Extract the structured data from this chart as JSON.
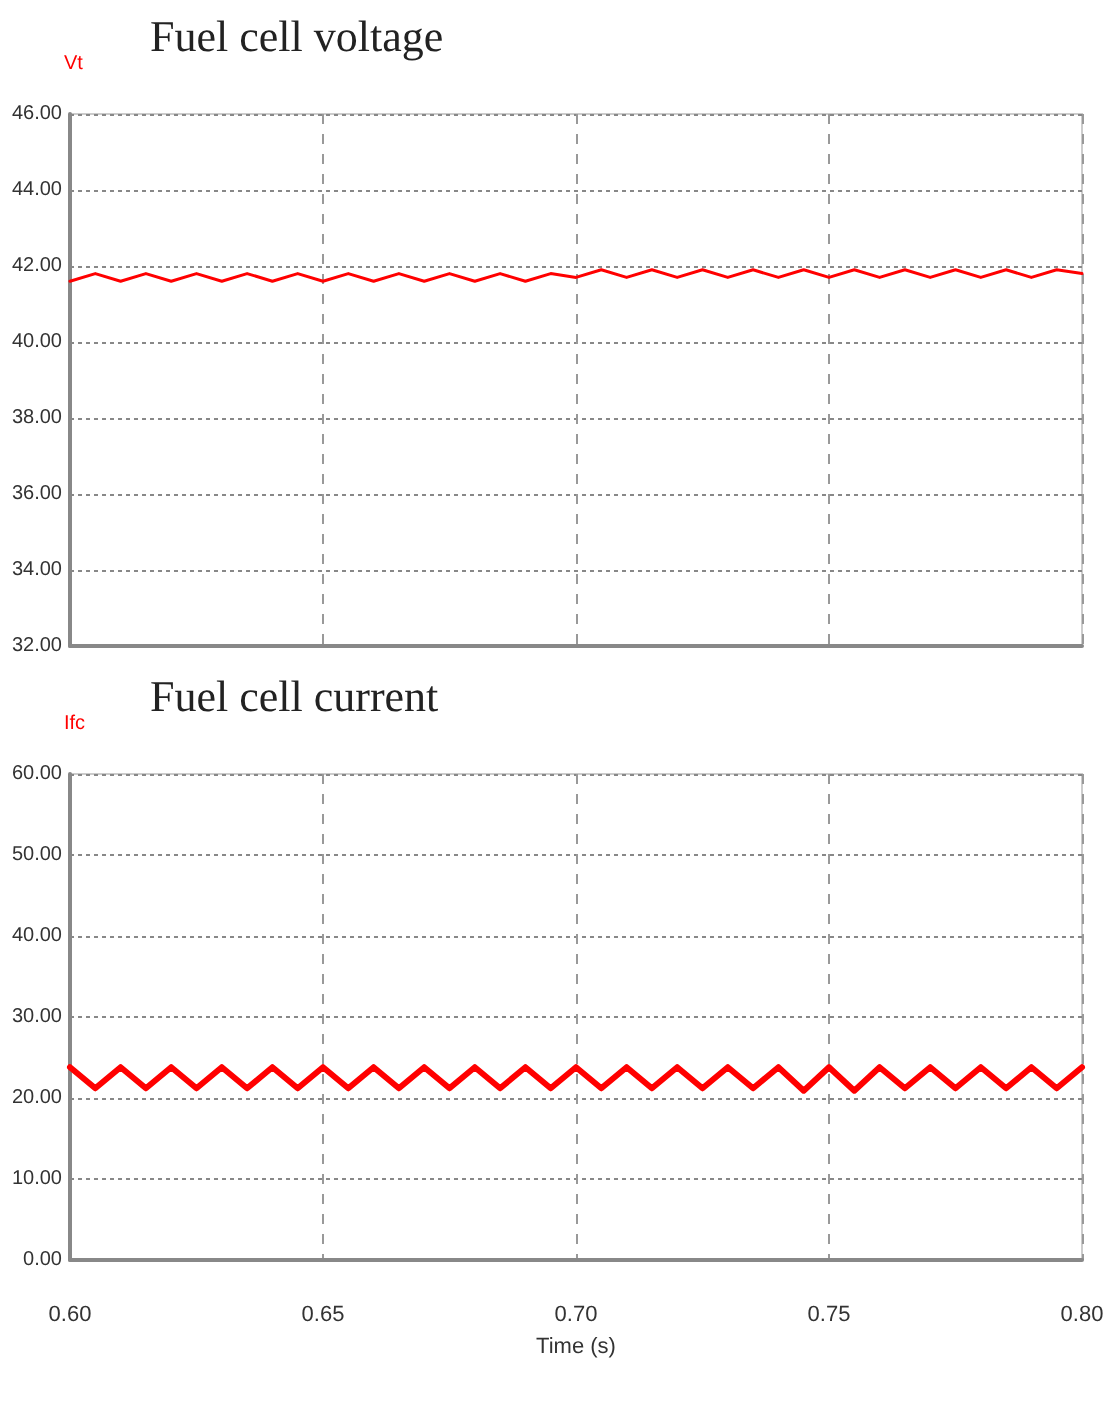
{
  "chart_data": [
    {
      "type": "line",
      "title": "Fuel cell voltage",
      "x": [
        0.6,
        0.605,
        0.61,
        0.615,
        0.62,
        0.625,
        0.63,
        0.635,
        0.64,
        0.645,
        0.65,
        0.655,
        0.66,
        0.665,
        0.67,
        0.675,
        0.68,
        0.685,
        0.69,
        0.695,
        0.7,
        0.705,
        0.71,
        0.715,
        0.72,
        0.725,
        0.73,
        0.735,
        0.74,
        0.745,
        0.75,
        0.755,
        0.76,
        0.765,
        0.77,
        0.775,
        0.78,
        0.785,
        0.79,
        0.795,
        0.8
      ],
      "series": [
        {
          "name": "Vt",
          "color": "#ff0000",
          "values": [
            41.6,
            41.8,
            41.6,
            41.8,
            41.6,
            41.8,
            41.6,
            41.8,
            41.6,
            41.8,
            41.6,
            41.8,
            41.6,
            41.8,
            41.6,
            41.8,
            41.6,
            41.8,
            41.6,
            41.8,
            41.7,
            41.9,
            41.7,
            41.9,
            41.7,
            41.9,
            41.7,
            41.9,
            41.7,
            41.9,
            41.7,
            41.9,
            41.7,
            41.9,
            41.7,
            41.9,
            41.7,
            41.9,
            41.7,
            41.9,
            41.8
          ]
        }
      ],
      "xlim": [
        0.6,
        0.8
      ],
      "xticks": [
        0.6,
        0.65,
        0.7,
        0.75,
        0.8
      ],
      "ylim": [
        32,
        46
      ],
      "yticks": [
        {
          "value": 32,
          "label": "32.00"
        },
        {
          "value": 34,
          "label": "34.00"
        },
        {
          "value": 36,
          "label": "36.00"
        },
        {
          "value": 38,
          "label": "38.00"
        },
        {
          "value": 40,
          "label": "40.00"
        },
        {
          "value": 42,
          "label": "42.00"
        },
        {
          "value": 44,
          "label": "44.00"
        },
        {
          "value": 46,
          "label": "46.00"
        }
      ],
      "tick_labels": "y",
      "grid": true,
      "marker": "none",
      "line_style": "solid"
    },
    {
      "type": "line",
      "title": "Fuel cell current",
      "xlabel": "Time (s)",
      "x": [
        0.6,
        0.605,
        0.61,
        0.615,
        0.62,
        0.625,
        0.63,
        0.635,
        0.64,
        0.645,
        0.65,
        0.655,
        0.66,
        0.665,
        0.67,
        0.675,
        0.68,
        0.685,
        0.69,
        0.695,
        0.7,
        0.705,
        0.71,
        0.715,
        0.72,
        0.725,
        0.73,
        0.735,
        0.74,
        0.745,
        0.75,
        0.755,
        0.76,
        0.765,
        0.77,
        0.775,
        0.78,
        0.785,
        0.79,
        0.795,
        0.8
      ],
      "series": [
        {
          "name": "Ifc",
          "color": "#ff0000",
          "values": [
            23.8,
            21.2,
            23.8,
            21.2,
            23.8,
            21.2,
            23.8,
            21.2,
            23.8,
            21.2,
            23.8,
            21.2,
            23.8,
            21.2,
            23.8,
            21.2,
            23.8,
            21.2,
            23.8,
            21.2,
            23.8,
            21.2,
            23.8,
            21.2,
            23.8,
            21.2,
            23.8,
            21.2,
            23.8,
            20.9,
            23.8,
            20.9,
            23.8,
            21.2,
            23.8,
            21.2,
            23.8,
            21.2,
            23.8,
            21.2,
            23.8
          ]
        }
      ],
      "xlim": [
        0.6,
        0.8
      ],
      "xticks": [
        {
          "value": 0.6,
          "label": "0.60"
        },
        {
          "value": 0.65,
          "label": "0.65"
        },
        {
          "value": 0.7,
          "label": "0.70"
        },
        {
          "value": 0.75,
          "label": "0.75"
        },
        {
          "value": 0.8,
          "label": "0.80"
        }
      ],
      "ylim": [
        0,
        60
      ],
      "yticks": [
        {
          "value": 0,
          "label": "0.00"
        },
        {
          "value": 10,
          "label": "10.00"
        },
        {
          "value": 20,
          "label": "20.00"
        },
        {
          "value": 30,
          "label": "30.00"
        },
        {
          "value": 40,
          "label": "40.00"
        },
        {
          "value": 50,
          "label": "50.00"
        },
        {
          "value": 60,
          "label": "60.00"
        }
      ],
      "grid": true,
      "marker": "none",
      "line_style": "solid"
    }
  ]
}
